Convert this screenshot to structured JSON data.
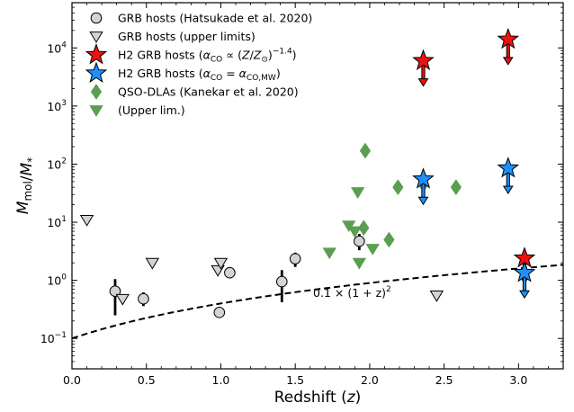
{
  "chart_data": {
    "type": "scatter",
    "xlabel": "Redshift (z)",
    "ylabel": "M_mol / M_*",
    "xlim": [
      0.0,
      3.3
    ],
    "ylim": [
      0.03,
      60000
    ],
    "yscale": "log",
    "grid": false,
    "legend_placement": "top-left",
    "x_ticks": [
      0.0,
      0.5,
      1.0,
      1.5,
      2.0,
      2.5,
      3.0
    ],
    "x_tick_labels": [
      "0.0",
      "0.5",
      "1.0",
      "1.5",
      "2.0",
      "2.5",
      "3.0"
    ],
    "y_ticks": [
      0.1,
      1,
      10,
      100,
      1000,
      10000
    ],
    "y_tick_labels": [
      {
        "base": "10",
        "exp": "−1"
      },
      {
        "base": "10",
        "exp": "0"
      },
      {
        "base": "10",
        "exp": "1"
      },
      {
        "base": "10",
        "exp": "2"
      },
      {
        "base": "10",
        "exp": "3"
      },
      {
        "base": "10",
        "exp": "4"
      }
    ],
    "series": [
      {
        "name": "GRB hosts (Hatsukade et al. 2020)",
        "marker": "circle",
        "color": "#d3d3d3",
        "points": [
          {
            "x": 0.29,
            "y": 0.65,
            "err_low": 0.25,
            "err_high": 1.05
          },
          {
            "x": 0.48,
            "y": 0.48,
            "err_low": 0.36,
            "err_high": 0.62
          },
          {
            "x": 0.99,
            "y": 0.28
          },
          {
            "x": 1.06,
            "y": 1.35
          },
          {
            "x": 1.41,
            "y": 0.95,
            "err_low": 0.42,
            "err_high": 1.5
          },
          {
            "x": 1.5,
            "y": 2.35,
            "err_low": 1.7,
            "err_high": 3.0
          },
          {
            "x": 1.93,
            "y": 4.7,
            "err_low": 3.3,
            "err_high": 6.3
          }
        ]
      },
      {
        "name": "GRB hosts (upper limits)",
        "marker": "triangle-down",
        "color": "#d3d3d3",
        "points": [
          {
            "x": 0.1,
            "y": 11
          },
          {
            "x": 0.34,
            "y": 0.48
          },
          {
            "x": 0.54,
            "y": 2.0
          },
          {
            "x": 0.98,
            "y": 1.5
          },
          {
            "x": 1.0,
            "y": 2.0
          },
          {
            "x": 2.45,
            "y": 0.55
          }
        ]
      },
      {
        "name": "H2 GRB hosts",
        "legend_formula": "(α_CO ∝ (Z/Z_⊙)^−1.4)",
        "marker": "star",
        "color": "#ee1111",
        "limit": "lower",
        "points": [
          {
            "x": 2.36,
            "y": 6000
          },
          {
            "x": 2.93,
            "y": 14000
          },
          {
            "x": 3.04,
            "y": 2.4
          }
        ]
      },
      {
        "name": "H2 GRB hosts",
        "legend_formula": "(α_CO = α_CO,MW)",
        "marker": "star",
        "color": "#1f8fff",
        "limit": "lower",
        "points": [
          {
            "x": 2.36,
            "y": 55
          },
          {
            "x": 2.93,
            "y": 85
          },
          {
            "x": 3.04,
            "y": 1.35
          }
        ]
      },
      {
        "name": "QSO-DLAs (Kanekar et al. 2020)",
        "marker": "diamond",
        "color": "#5a9e50",
        "points": [
          {
            "x": 1.97,
            "y": 170
          },
          {
            "x": 2.19,
            "y": 40
          },
          {
            "x": 2.36,
            "y": 45
          },
          {
            "x": 2.58,
            "y": 40
          },
          {
            "x": 1.96,
            "y": 8
          },
          {
            "x": 2.13,
            "y": 5
          }
        ]
      },
      {
        "name": "(Upper lim.)",
        "marker": "triangle-down",
        "color": "#5a9e50",
        "points": [
          {
            "x": 1.92,
            "y": 33
          },
          {
            "x": 1.86,
            "y": 8.8
          },
          {
            "x": 1.9,
            "y": 7.0
          },
          {
            "x": 1.73,
            "y": 3.0
          },
          {
            "x": 2.02,
            "y": 3.5
          },
          {
            "x": 1.93,
            "y": 2.0
          }
        ]
      }
    ],
    "curve": {
      "label": "0.1 × (1 + z)^2",
      "style": "dashed",
      "color": "#000000",
      "coefficient": 0.1,
      "power": 2
    }
  }
}
